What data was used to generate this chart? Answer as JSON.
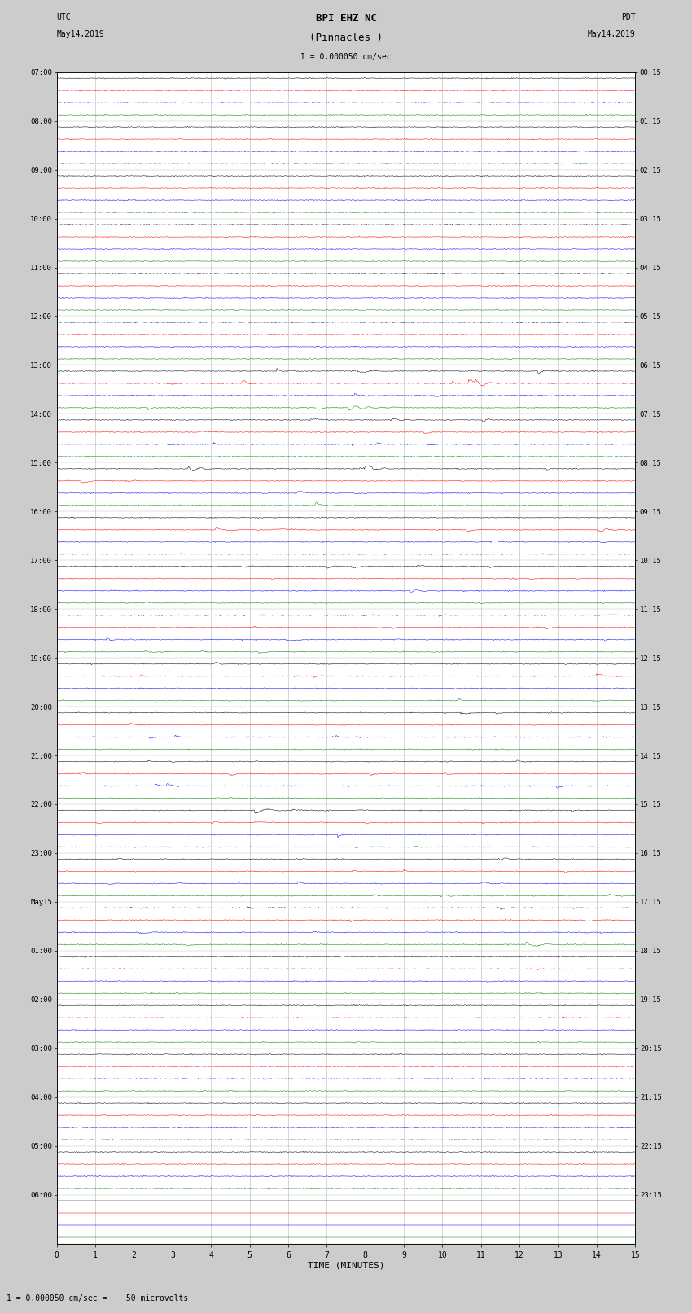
{
  "title_line1": "BPI EHZ NC",
  "title_line2": "(Pinnacles )",
  "scale_label": "I = 0.000050 cm/sec",
  "left_label_line1": "UTC",
  "left_label_line2": "May14,2019",
  "right_label_line1": "PDT",
  "right_label_line2": "May14,2019",
  "bottom_label": "TIME (MINUTES)",
  "footer_label": "1 = 0.000050 cm/sec =    50 microvolts",
  "utc_labels": [
    "07:00",
    "08:00",
    "09:00",
    "10:00",
    "11:00",
    "12:00",
    "13:00",
    "14:00",
    "15:00",
    "16:00",
    "17:00",
    "18:00",
    "19:00",
    "20:00",
    "21:00",
    "22:00",
    "23:00",
    "May15",
    "01:00",
    "02:00",
    "03:00",
    "04:00",
    "05:00",
    "06:00"
  ],
  "pdt_labels": [
    "00:15",
    "01:15",
    "02:15",
    "03:15",
    "04:15",
    "05:15",
    "06:15",
    "07:15",
    "08:15",
    "09:15",
    "10:15",
    "11:15",
    "12:15",
    "13:15",
    "14:15",
    "15:15",
    "16:15",
    "17:15",
    "18:15",
    "19:15",
    "20:15",
    "21:15",
    "22:15",
    "23:15"
  ],
  "n_groups": 24,
  "traces_per_group": 4,
  "row_colors": [
    "black",
    "red",
    "blue",
    "green"
  ],
  "bg_color": "#cccccc",
  "plot_bg_color": "white",
  "grid_color": "#999999",
  "trace_lw": 0.35,
  "xlim": [
    0,
    15
  ],
  "xticks": [
    0,
    1,
    2,
    3,
    4,
    5,
    6,
    7,
    8,
    9,
    10,
    11,
    12,
    13,
    14,
    15
  ],
  "activity_profile": {
    "0": [
      0.03,
      0.03,
      0.03,
      0.03
    ],
    "1": [
      0.03,
      0.03,
      0.03,
      0.03
    ],
    "2": [
      0.03,
      0.03,
      0.03,
      0.03
    ],
    "3": [
      0.03,
      0.03,
      0.03,
      0.03
    ],
    "4": [
      0.03,
      0.03,
      0.05,
      0.03
    ],
    "5": [
      0.03,
      0.03,
      0.03,
      0.03
    ],
    "6": [
      0.25,
      0.35,
      0.2,
      0.3
    ],
    "7": [
      0.2,
      0.15,
      0.15,
      0.15
    ],
    "8": [
      0.35,
      0.3,
      0.28,
      0.3
    ],
    "9": [
      0.15,
      0.18,
      0.2,
      0.18
    ],
    "10": [
      0.2,
      0.15,
      0.15,
      0.12
    ],
    "11": [
      0.12,
      0.15,
      0.18,
      0.15
    ],
    "12": [
      0.2,
      0.22,
      0.18,
      0.2
    ],
    "13": [
      0.3,
      0.2,
      0.25,
      0.28
    ],
    "14": [
      0.18,
      0.25,
      0.22,
      0.2
    ],
    "15": [
      0.25,
      0.2,
      0.22,
      0.18
    ],
    "16": [
      0.25,
      0.28,
      0.2,
      0.15
    ],
    "17": [
      0.12,
      0.2,
      0.15,
      0.25
    ],
    "18": [
      0.08,
      0.1,
      0.08,
      0.06
    ],
    "19": [
      0.05,
      0.05,
      0.05,
      0.04
    ],
    "20": [
      0.04,
      0.04,
      0.03,
      0.03
    ],
    "21": [
      0.03,
      0.03,
      0.03,
      0.03
    ],
    "22": [
      0.03,
      0.03,
      0.03,
      0.03
    ],
    "23": [
      0.0,
      0.0,
      0.0,
      0.0
    ]
  }
}
